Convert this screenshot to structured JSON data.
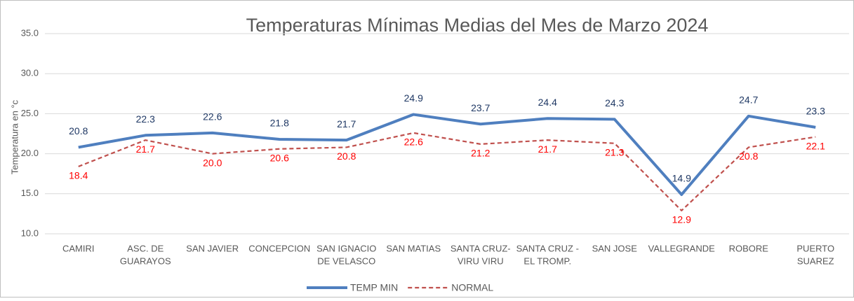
{
  "chart_data": {
    "type": "line",
    "title": "Temperaturas Mínimas Medias del Mes de Marzo 2024",
    "y_label": "Temperatura en °c",
    "categories": [
      [
        "CAMIRI"
      ],
      [
        "ASC. DE",
        "GUARAYOS"
      ],
      [
        "SAN JAVIER"
      ],
      [
        "CONCEPCION"
      ],
      [
        "SAN IGNACIO",
        "DE VELASCO"
      ],
      [
        "SAN MATIAS"
      ],
      [
        "SANTA CRUZ-",
        "VIRU VIRU"
      ],
      [
        "SANTA CRUZ -",
        "EL TROMP."
      ],
      [
        "SAN JOSE"
      ],
      [
        "VALLEGRANDE"
      ],
      [
        "ROBORE"
      ],
      [
        "PUERTO",
        "SUAREZ"
      ]
    ],
    "series": [
      {
        "name": "TEMP MIN",
        "color": "#4f7fbf",
        "label_color": "#1f3864",
        "dash": false,
        "values": [
          20.8,
          22.3,
          22.6,
          21.8,
          21.7,
          24.9,
          23.7,
          24.4,
          24.3,
          14.9,
          24.7,
          23.3
        ],
        "value_labels": [
          "20.8",
          "22.3",
          "22.6",
          "21.8",
          "21.7",
          "24.9",
          "23.7",
          "24.4",
          "24.3",
          "14.9",
          "24.7",
          "23.3"
        ]
      },
      {
        "name": "NORMAL",
        "color": "#c0504d",
        "label_color": "#ff0000",
        "dash": true,
        "values": [
          18.4,
          21.7,
          20.0,
          20.6,
          20.8,
          22.6,
          21.2,
          21.7,
          21.3,
          12.9,
          20.8,
          22.1
        ],
        "value_labels": [
          "18.4",
          "21.7",
          "20.0",
          "20.6",
          "20.8",
          "22.6",
          "21.2",
          "21.7",
          "21.3",
          "12.9",
          "20.8",
          "22.1"
        ]
      }
    ],
    "ylim": [
      10,
      35
    ],
    "yticks": [
      {
        "value": 10,
        "label": "10.0"
      },
      {
        "value": 15,
        "label": "15.0"
      },
      {
        "value": 20,
        "label": "20.0"
      },
      {
        "value": 25,
        "label": "25.0"
      },
      {
        "value": 30,
        "label": "30.0"
      },
      {
        "value": 35,
        "label": "35.0"
      }
    ],
    "grid": true
  }
}
